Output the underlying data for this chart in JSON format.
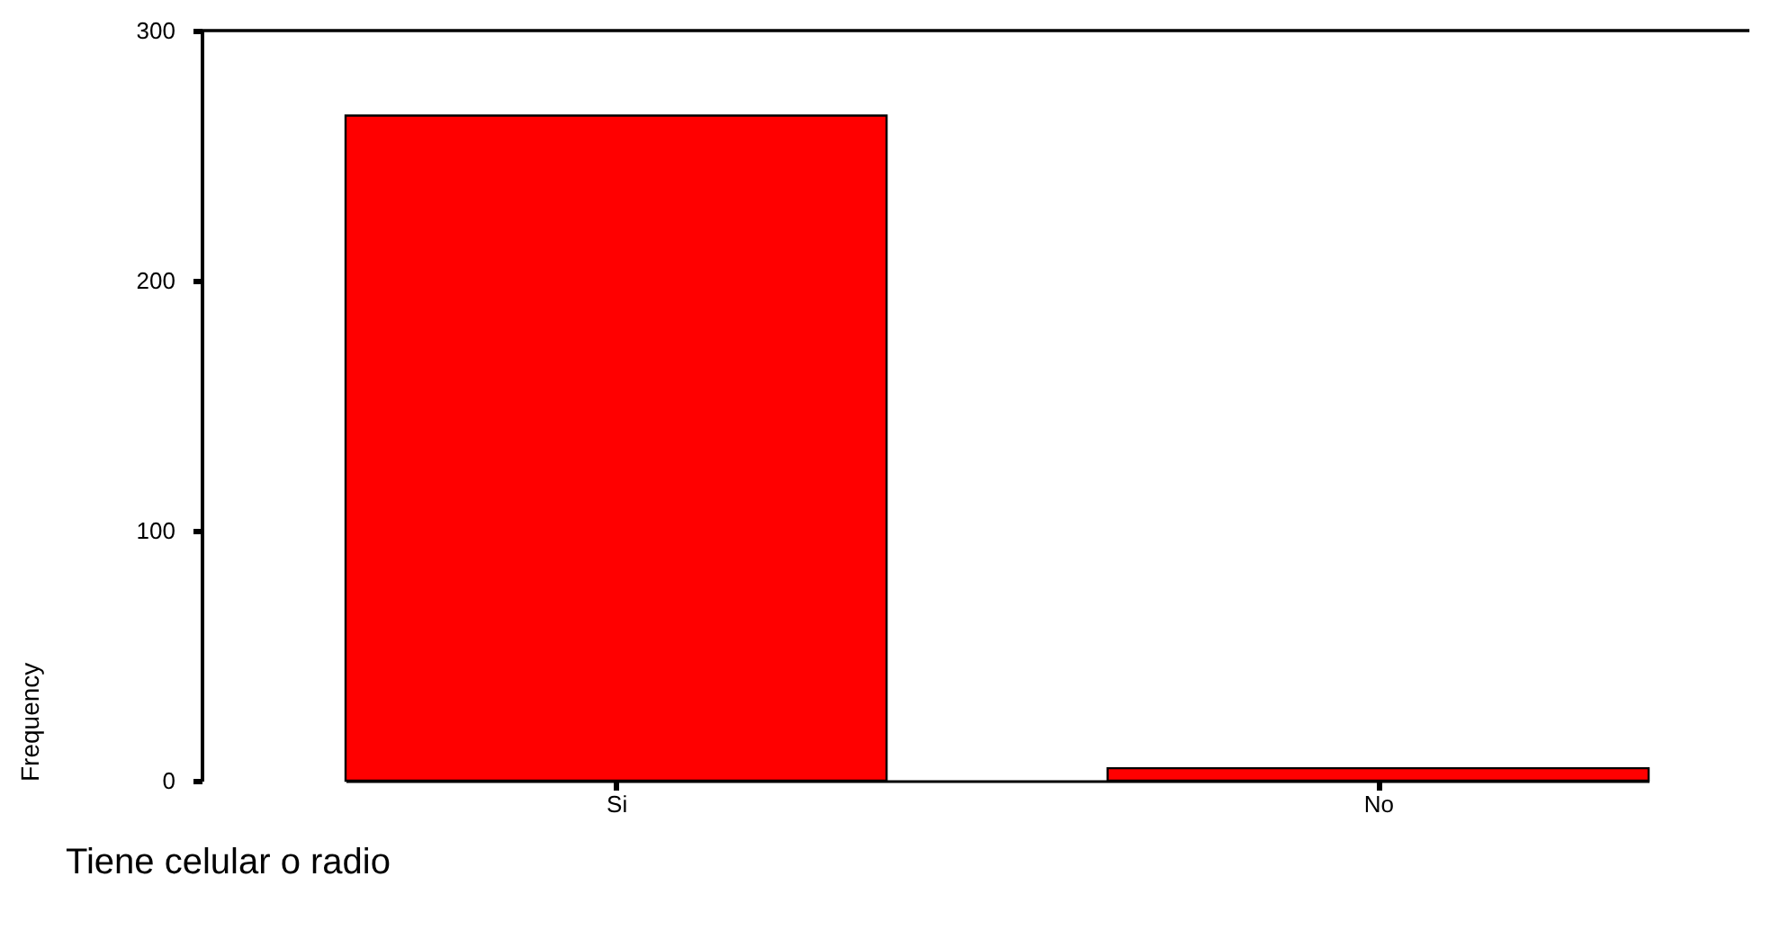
{
  "chart_data": {
    "type": "bar",
    "xlabel": "Tiene celular o radio",
    "ylabel": "Frequency",
    "categories": [
      "Si",
      "No"
    ],
    "values": [
      266,
      5
    ],
    "color": "#ff0000",
    "ylim": [
      0,
      300
    ],
    "yticks": [
      0,
      100,
      200,
      300
    ],
    "grid": false
  }
}
